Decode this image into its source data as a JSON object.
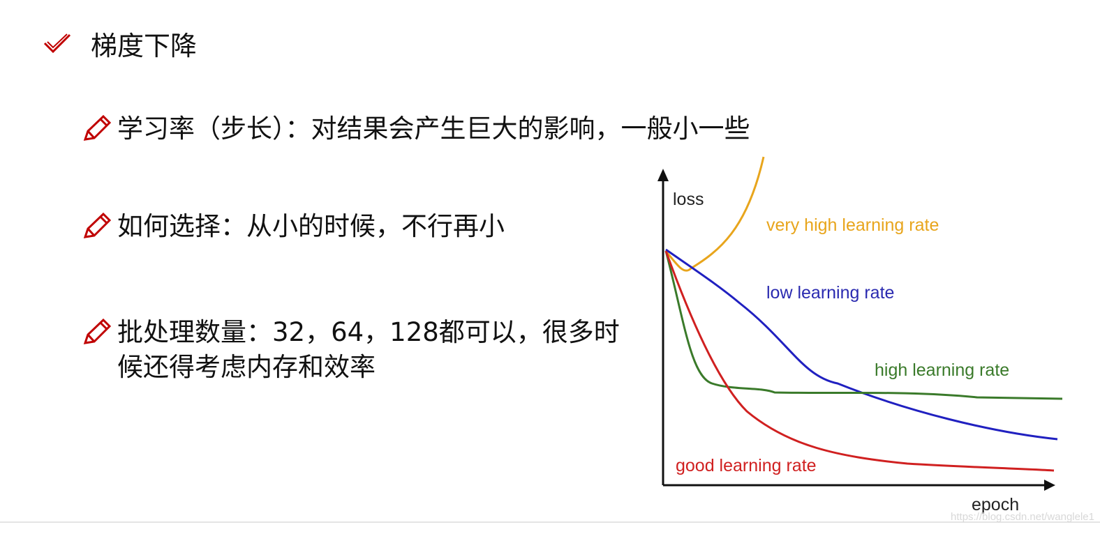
{
  "title": "梯度下降",
  "bullets": [
    "学习率（步长）：对结果会产生巨大的影响，一般小一些",
    "如何选择：从小的时候，不行再小",
    "批处理数量：32，64，128都可以，很多时候还得考虑内存和效率"
  ],
  "figure": {
    "y_label": "loss",
    "x_label": "epoch",
    "curves": [
      "very high learning rate",
      "low learning rate",
      "high learning rate",
      "good learning rate"
    ]
  },
  "watermark": "https://blog.csdn.net/wanglele1"
}
